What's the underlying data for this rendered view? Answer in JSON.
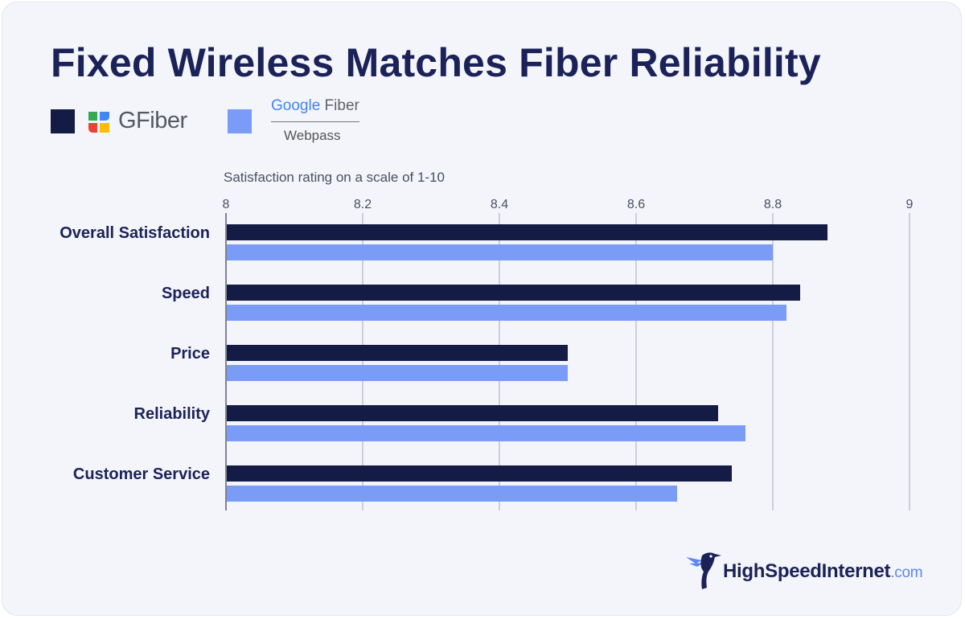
{
  "title": "Fixed Wireless Matches Fiber Reliability",
  "legend": {
    "gfiber": {
      "name": "GFiber",
      "color": "#141b45",
      "logo_icon": "gfiber-logo-icon"
    },
    "webpass": {
      "name_top_g": "Google",
      "name_top_rest": " Fiber",
      "name_bottom": "Webpass",
      "color": "#7a9cf7"
    }
  },
  "brand": {
    "name": "HighSpeedInternet",
    "tld": ".com",
    "icon": "hummingbird-icon"
  },
  "chart_data": {
    "type": "bar",
    "orientation": "horizontal",
    "xlabel": "Satisfaction rating on a scale of 1-10",
    "xlim": [
      8,
      9
    ],
    "ticks": [
      8,
      8.2,
      8.4,
      8.6,
      8.8,
      9
    ],
    "tick_labels": [
      "8",
      "8.2",
      "8.4",
      "8.6",
      "8.8",
      "9"
    ],
    "grid": true,
    "legend_position": "top-left",
    "categories": [
      "Overall Satisfaction",
      "Speed",
      "Price",
      "Reliability",
      "Customer Service"
    ],
    "series": [
      {
        "key": "gfiber",
        "color": "#141b45",
        "values": [
          8.88,
          8.84,
          8.5,
          8.72,
          8.74
        ]
      },
      {
        "key": "webpass",
        "color": "#7a9cf7",
        "values": [
          8.8,
          8.82,
          8.5,
          8.76,
          8.66
        ]
      }
    ]
  }
}
